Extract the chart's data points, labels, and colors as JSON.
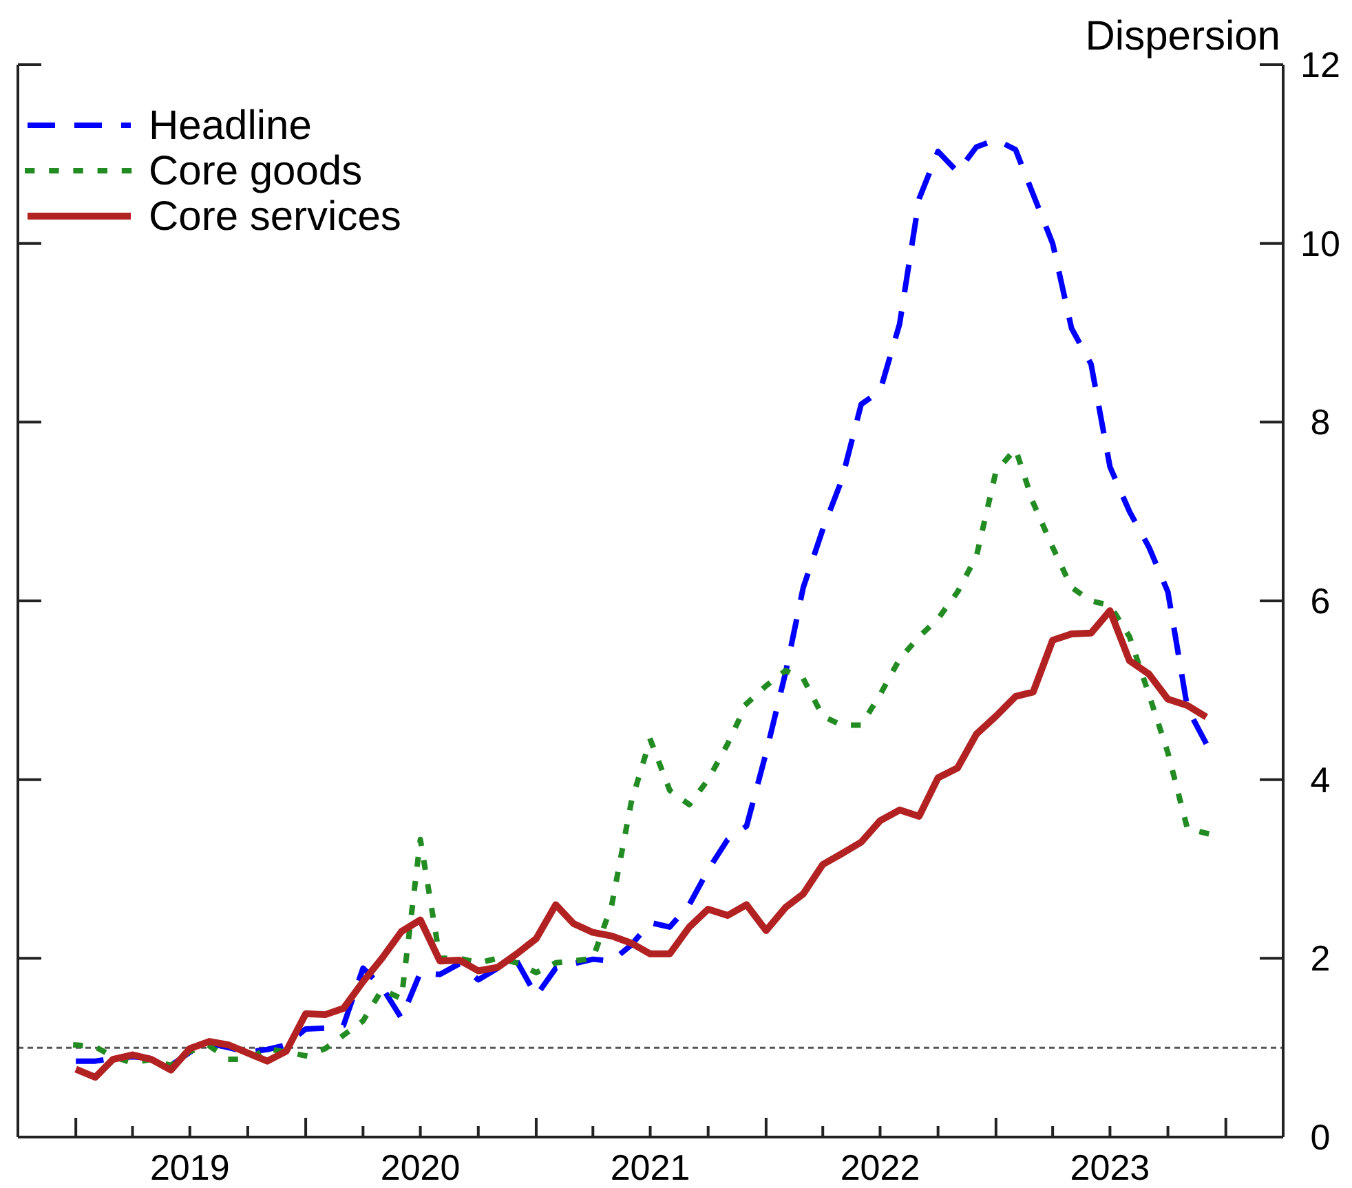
{
  "chart_data": {
    "type": "line",
    "ylabel": "Dispersion",
    "x": [
      "2019-01",
      "2019-02",
      "2019-03",
      "2019-04",
      "2019-05",
      "2019-06",
      "2019-07",
      "2019-08",
      "2019-09",
      "2019-10",
      "2019-11",
      "2019-12",
      "2020-01",
      "2020-02",
      "2020-03",
      "2020-04",
      "2020-05",
      "2020-06",
      "2020-07",
      "2020-08",
      "2020-09",
      "2020-10",
      "2020-11",
      "2020-12",
      "2021-01",
      "2021-02",
      "2021-03",
      "2021-04",
      "2021-05",
      "2021-06",
      "2021-07",
      "2021-08",
      "2021-09",
      "2021-10",
      "2021-11",
      "2021-12",
      "2022-01",
      "2022-02",
      "2022-03",
      "2022-04",
      "2022-05",
      "2022-06",
      "2022-07",
      "2022-08",
      "2022-09",
      "2022-10",
      "2022-11",
      "2022-12",
      "2023-01",
      "2023-02",
      "2023-03",
      "2023-04",
      "2023-05",
      "2023-06",
      "2023-07",
      "2023-08",
      "2023-09",
      "2023-10",
      "2023-11",
      "2023-12"
    ],
    "series": [
      {
        "name": "Headline",
        "color": "#0000ff",
        "line_style": "dashed",
        "values": [
          0.85,
          0.85,
          0.88,
          0.9,
          0.88,
          0.8,
          0.95,
          1.05,
          1.0,
          0.95,
          0.98,
          1.03,
          1.21,
          1.22,
          1.25,
          1.89,
          1.68,
          1.33,
          1.84,
          1.82,
          1.94,
          1.76,
          1.89,
          1.97,
          1.58,
          1.89,
          1.94,
          1.99,
          1.97,
          2.15,
          2.4,
          2.35,
          2.6,
          2.99,
          3.33,
          3.48,
          4.3,
          5.2,
          6.15,
          6.8,
          7.35,
          8.2,
          8.35,
          9.1,
          10.5,
          11.03,
          10.8,
          11.08,
          11.16,
          11.05,
          10.55,
          10.0,
          9.05,
          8.65,
          7.5,
          7.0,
          6.6,
          6.1,
          4.8,
          4.4
        ]
      },
      {
        "name": "Core goods",
        "color": "#228b22",
        "line_style": "dotted",
        "values": [
          1.03,
          1.01,
          0.9,
          0.83,
          0.87,
          0.8,
          0.96,
          1.02,
          0.87,
          0.87,
          0.99,
          0.95,
          0.91,
          0.99,
          1.14,
          1.3,
          1.65,
          1.55,
          3.33,
          2.0,
          2.0,
          1.95,
          2.0,
          1.95,
          1.84,
          1.95,
          1.97,
          2.0,
          2.6,
          3.75,
          4.45,
          3.88,
          3.72,
          4.0,
          4.4,
          4.85,
          5.05,
          5.22,
          5.13,
          4.71,
          4.61,
          4.61,
          4.95,
          5.35,
          5.6,
          5.8,
          6.1,
          6.5,
          7.45,
          7.7,
          7.1,
          6.6,
          6.15,
          6.0,
          5.95,
          5.6,
          4.95,
          4.3,
          3.45,
          3.4
        ]
      },
      {
        "name": "Core services",
        "color": "#b22222",
        "line_style": "solid",
        "values": [
          0.76,
          0.67,
          0.87,
          0.92,
          0.87,
          0.75,
          0.99,
          1.07,
          1.03,
          0.94,
          0.85,
          0.96,
          1.38,
          1.37,
          1.44,
          1.74,
          2.0,
          2.3,
          2.43,
          1.97,
          1.98,
          1.86,
          1.9,
          2.05,
          2.22,
          2.6,
          2.39,
          2.29,
          2.25,
          2.17,
          2.05,
          2.05,
          2.35,
          2.55,
          2.48,
          2.6,
          2.31,
          2.57,
          2.72,
          3.05,
          3.17,
          3.3,
          3.54,
          3.66,
          3.59,
          4.02,
          4.13,
          4.51,
          4.71,
          4.93,
          4.98,
          5.56,
          5.63,
          5.64,
          5.89,
          5.33,
          5.18,
          4.9,
          4.83,
          4.7
        ]
      }
    ],
    "xlim": [
      "2018-10",
      "2024-04"
    ],
    "xticks": [
      {
        "value": "2019-01",
        "label": null
      },
      {
        "value": "2019-04",
        "label": null
      },
      {
        "value": "2019-07",
        "label": "2019"
      },
      {
        "value": "2019-10",
        "label": null
      },
      {
        "value": "2020-01",
        "label": null
      },
      {
        "value": "2020-04",
        "label": null
      },
      {
        "value": "2020-07",
        "label": "2020"
      },
      {
        "value": "2020-10",
        "label": null
      },
      {
        "value": "2021-01",
        "label": null
      },
      {
        "value": "2021-04",
        "label": null
      },
      {
        "value": "2021-07",
        "label": "2021"
      },
      {
        "value": "2021-10",
        "label": null
      },
      {
        "value": "2022-01",
        "label": null
      },
      {
        "value": "2022-04",
        "label": null
      },
      {
        "value": "2022-07",
        "label": "2022"
      },
      {
        "value": "2022-10",
        "label": null
      },
      {
        "value": "2023-01",
        "label": null
      },
      {
        "value": "2023-04",
        "label": null
      },
      {
        "value": "2023-07",
        "label": "2023"
      },
      {
        "value": "2023-10",
        "label": null
      },
      {
        "value": "2024-01",
        "label": null
      }
    ],
    "ylim": [
      0,
      12
    ],
    "yticks": [
      0,
      2,
      4,
      6,
      8,
      10,
      12
    ],
    "ref_lines": [
      {
        "axis": "y",
        "value": 1,
        "color": "#555555",
        "line_style": "dashed"
      }
    ],
    "legend": "top left",
    "grid": false
  }
}
